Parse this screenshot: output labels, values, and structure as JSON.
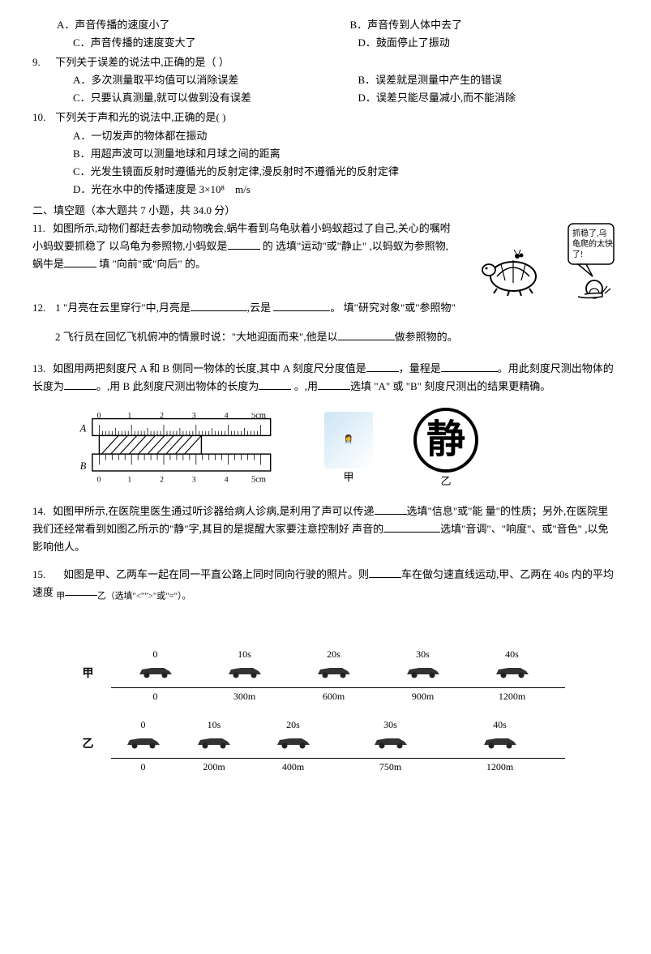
{
  "colors": {
    "text": "#000000",
    "bg": "#ffffff",
    "gray": "#cccccc"
  },
  "q8": {
    "opts": [
      {
        "k": "A",
        "t": "声音传播的速度小了"
      },
      {
        "k": "B",
        "t": "声音传到人体中去了"
      },
      {
        "k": "C",
        "t": "声音传播的速度变大了"
      },
      {
        "k": "D",
        "t": "鼓面停止了振动"
      }
    ]
  },
  "q9": {
    "num": "9.",
    "stem": "下列关于误差的说法中,正确的是（  ）",
    "opts": [
      {
        "k": "A",
        "t": "多次测量取平均值可以消除误差"
      },
      {
        "k": "B",
        "t": "误差就是测量中产生的错误"
      },
      {
        "k": "C",
        "t": "只要认真测量,就可以做到没有误差"
      },
      {
        "k": "D",
        "t": "误差只能尽量减小,而不能消除"
      }
    ]
  },
  "q10": {
    "num": "10.",
    "stem": "下列关于声和光的说法中,正确的是( )",
    "opts": [
      {
        "k": "A",
        "t": "一切发声的物体都在振动"
      },
      {
        "k": "B",
        "t": "用超声波可以测量地球和月球之间的距离"
      },
      {
        "k": "C",
        "t": "光发生镜面反射时遵循光的反射定律,漫反射时不遵循光的反射定律"
      },
      {
        "k": "D",
        "t": "光在水中的传播速度是 3×10⁸　m/s"
      }
    ]
  },
  "section2": "二、填空题（本大题共 7 小题，共 34.0 分）",
  "q11": {
    "num": "11.",
    "p1a": "如图所示,动物们都赶去参加动物晚会,蜗牛看到乌龟驮着小蚂蚁超过了自己,关心的嘱咐小蚂蚁要抓稳了  以乌龟为参照物,小蚂蚁是",
    "p1b": " 的 选填\"运动\"或\"静止\" ,以蚂蚁为参照物,蜗牛是",
    "p1c": " 填 \"向前\"或\"向后\" 的。",
    "bubble": "抓稳了,乌龟爬的太快了!"
  },
  "q12": {
    "num": "12.",
    "p1a": " 1 \"月亮在云里穿行\"中,月亮是",
    "p1b": ",云是 ",
    "p1c": "。 填\"研究对象\"或\"参照物\"",
    "p2a": " 2 飞行员在回忆飞机俯冲的情景时说：\"大地迎面而来\",他是以",
    "p2b": "做参照物的。"
  },
  "q13": {
    "num": "13.",
    "a": "如图用两把刻度尺 A 和 B 侧同一物体的长度,其中 A 刻度尺分度值是",
    "b": "，量程是",
    "c": "。用此刻度尺测出物体的长度为",
    "d": "。,用 B 此刻度尺测出物体的长度为",
    "e": " 。,用",
    "f": "选填 \"A\" 或 \"B\" 刻度尺测出的结果更精确。",
    "ruler": {
      "labels": [
        "0",
        "1",
        "2",
        "3",
        "4",
        "5cm"
      ],
      "A": "A",
      "B": "B"
    },
    "jia": "甲",
    "yi": "乙"
  },
  "q14": {
    "num": "14.",
    "a": "如图甲所示,在医院里医生通过听诊器给病人诊病,是利用了声可以传递",
    "b": "选填\"信息\"或\"能  量\"的性质；另外,在医院里我们还经常看到如图乙所示的\"静\"字,其目的是提醒大家要注意控制好 声音的",
    "c": "选填\"音调\"、\"响度\"、或\"音色\" ,以免影响他人。"
  },
  "q15": {
    "num": "15.",
    "a": "如图是甲、乙两车一起在同一平直公路上同时同向行驶的照片。则",
    "b": "车在做匀速直线运动,甲、乙两在 40s 内的平均速度 ",
    "c": "甲",
    "d": "乙（选填\"<\"\">\"或\"=\"）。"
  },
  "cars": {
    "jiaLabel": "甲",
    "yiLabel": "乙",
    "times": [
      "0",
      "10s",
      "20s",
      "30s",
      "40s"
    ],
    "jiaDist": [
      "0",
      "300m",
      "600m",
      "900m",
      "1200m"
    ],
    "yiDist": [
      "0",
      "200m",
      "400m",
      "750m",
      "1200m"
    ]
  }
}
